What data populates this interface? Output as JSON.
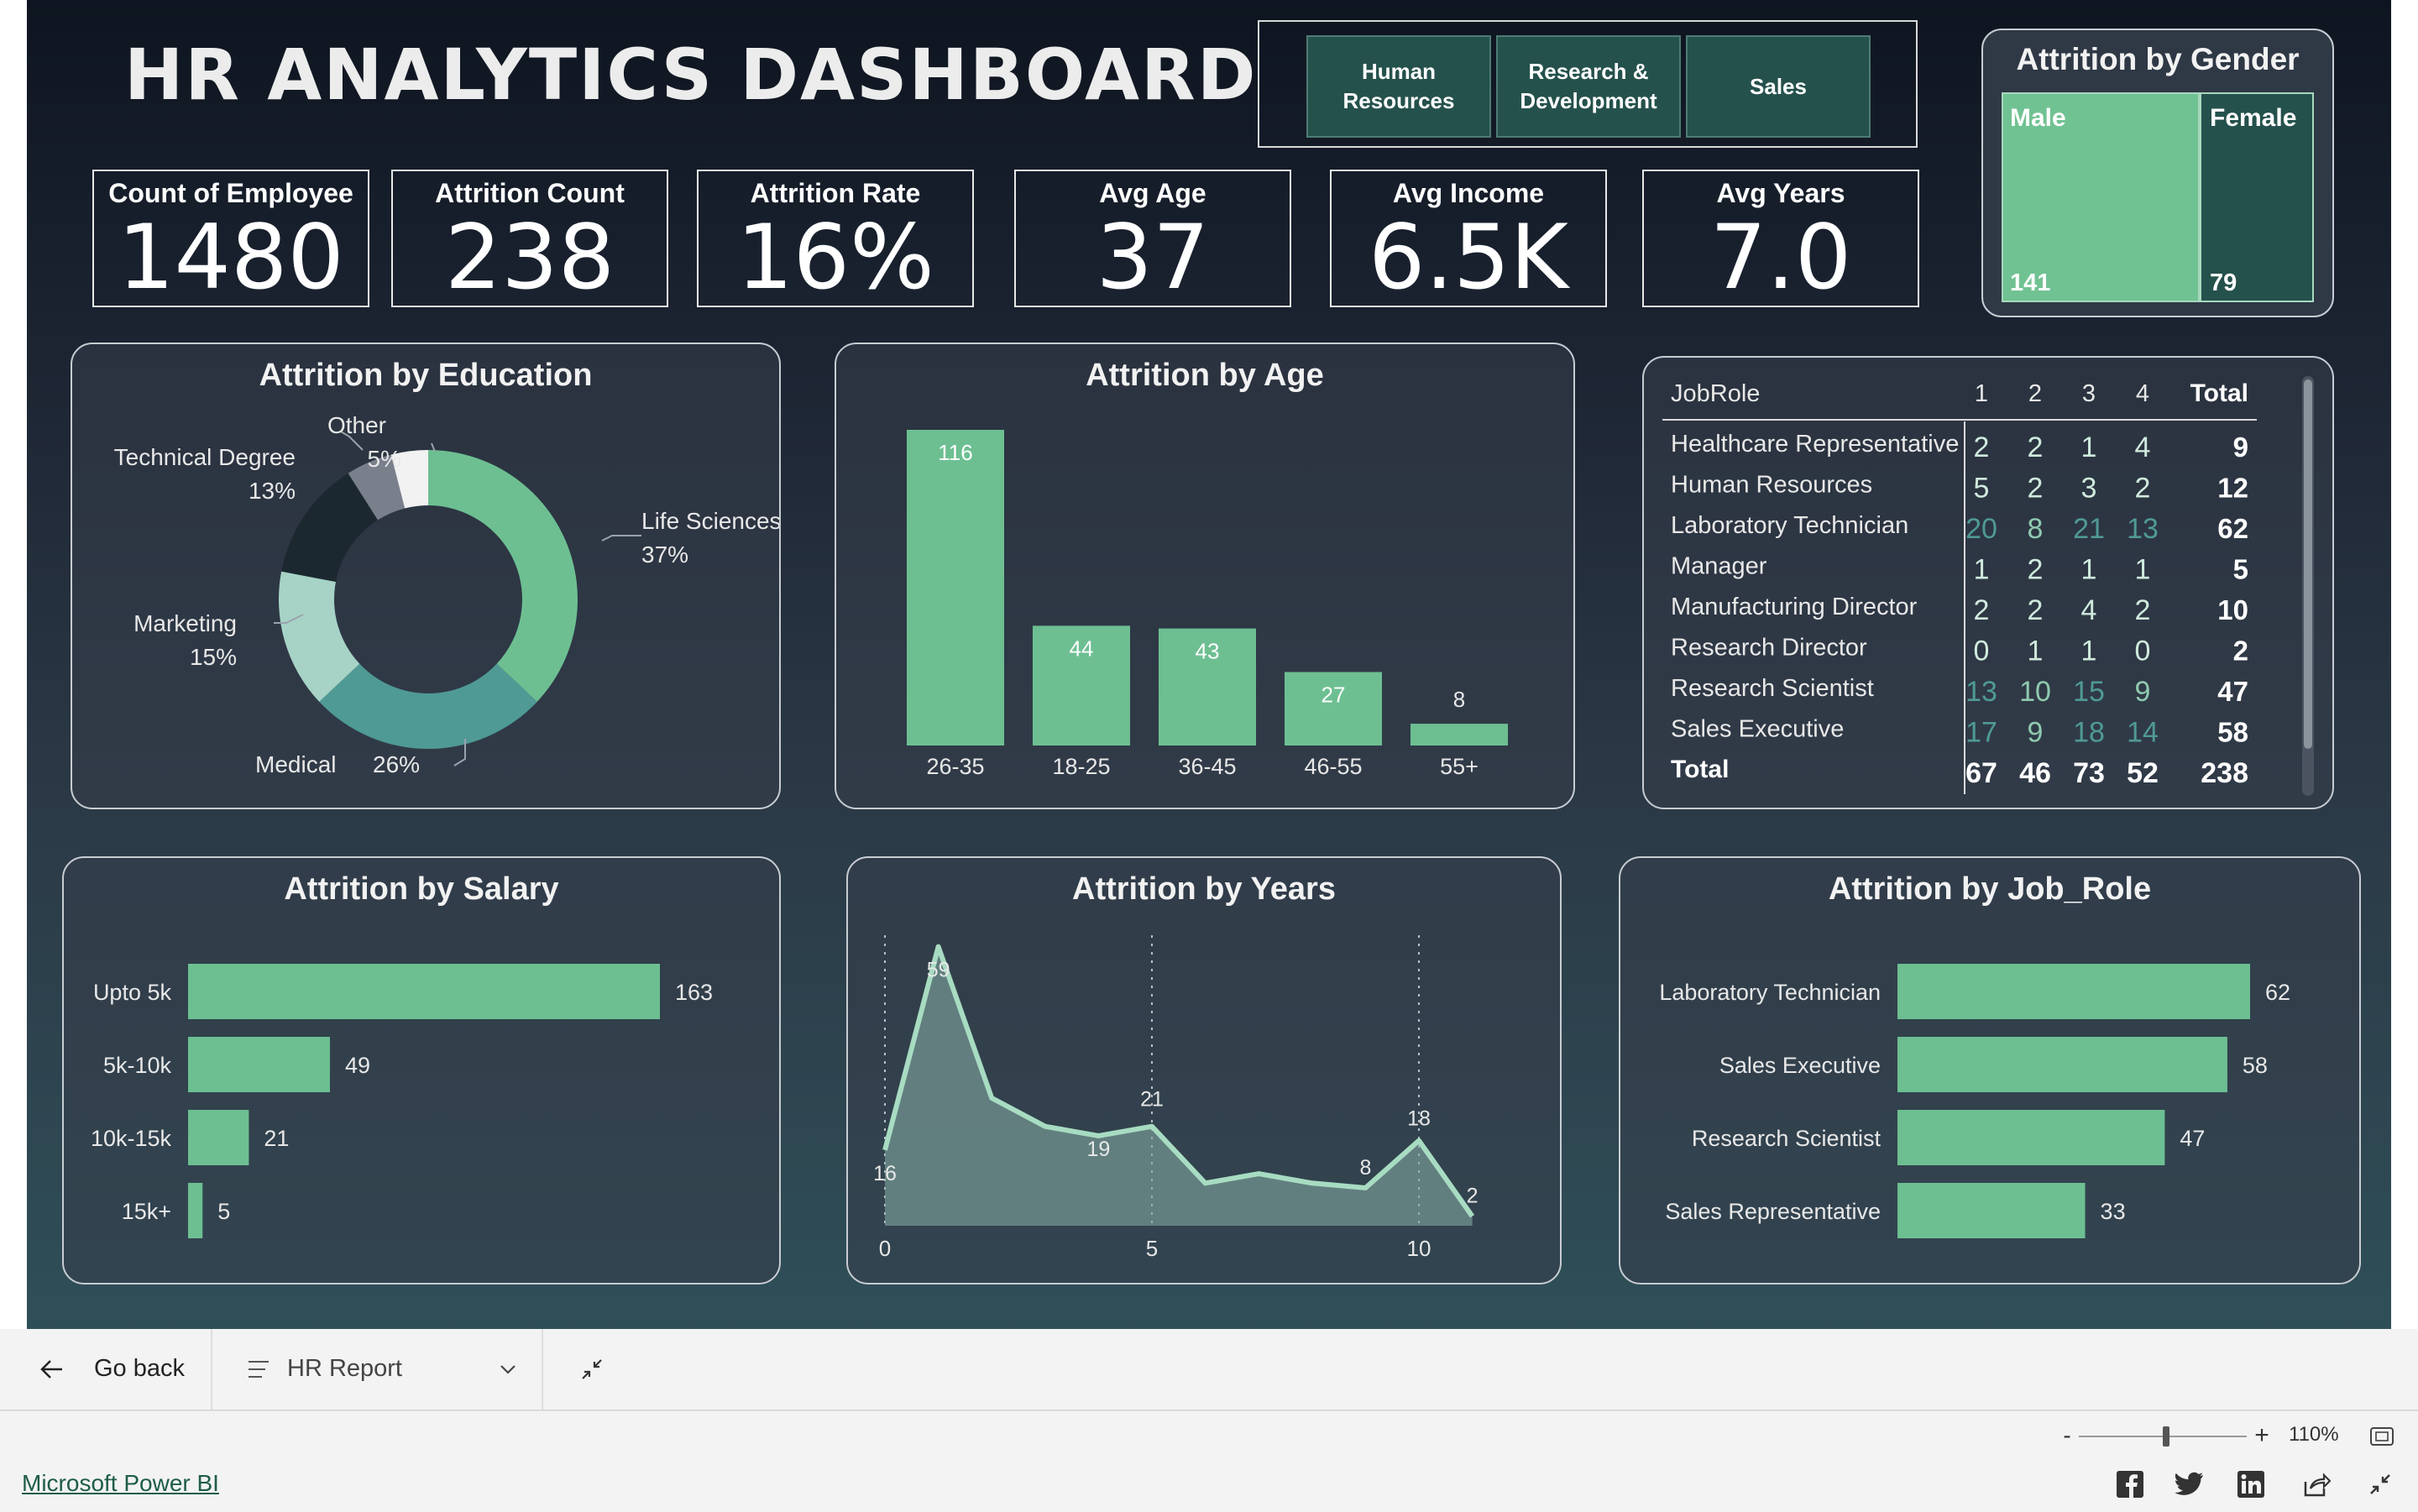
{
  "dashboard": {
    "title": "HR ANALYTICS DASHBOARD",
    "slicer_buttons": [
      "Human Resources",
      "Research & Development",
      "Sales"
    ],
    "kpis": [
      {
        "label": "Count of Employee",
        "value": "1480"
      },
      {
        "label": "Attrition Count",
        "value": "238"
      },
      {
        "label": "Attrition Rate",
        "value": "16%"
      },
      {
        "label": "Avg Age",
        "value": "37"
      },
      {
        "label": "Avg Income",
        "value": "6.5K"
      },
      {
        "label": "Avg Years",
        "value": "7.0"
      }
    ],
    "gender": {
      "title": "Attrition by Gender",
      "items": [
        {
          "label": "Male",
          "value": 141
        },
        {
          "label": "Female",
          "value": 79
        }
      ]
    },
    "education": {
      "title": "Attrition by Education",
      "labels": [
        {
          "name": "Life Sciences",
          "pct": "37%"
        },
        {
          "name": "Medical",
          "pct": "26%"
        },
        {
          "name": "Marketing",
          "pct": "15%"
        },
        {
          "name": "Technical Degree",
          "pct": "13%"
        },
        {
          "name": "Other",
          "pct": "5%"
        }
      ]
    },
    "age": {
      "title": "Attrition by Age"
    },
    "matrix": {
      "headers": [
        "JobRole",
        "1",
        "2",
        "3",
        "4",
        "Total"
      ],
      "rows": [
        {
          "role": "Healthcare Representative",
          "v": [
            2,
            2,
            1,
            4
          ],
          "total": 9
        },
        {
          "role": "Human Resources",
          "v": [
            5,
            2,
            3,
            2
          ],
          "total": 12
        },
        {
          "role": "Laboratory Technician",
          "v": [
            20,
            8,
            21,
            13
          ],
          "total": 62
        },
        {
          "role": "Manager",
          "v": [
            1,
            2,
            1,
            1
          ],
          "total": 5
        },
        {
          "role": "Manufacturing Director",
          "v": [
            2,
            2,
            4,
            2
          ],
          "total": 10
        },
        {
          "role": "Research Director",
          "v": [
            0,
            1,
            1,
            0
          ],
          "total": 2
        },
        {
          "role": "Research Scientist",
          "v": [
            13,
            10,
            15,
            9
          ],
          "total": 47
        },
        {
          "role": "Sales Executive",
          "v": [
            17,
            9,
            18,
            14
          ],
          "total": 58
        }
      ],
      "total_row": {
        "label": "Total",
        "v": [
          67,
          46,
          73,
          52
        ],
        "total": 238
      }
    },
    "salary": {
      "title": "Attrition by Salary"
    },
    "years": {
      "title": "Attrition by Years"
    },
    "jobrole": {
      "title": "Attrition by Job_Role"
    }
  },
  "chart_data": [
    {
      "type": "pie",
      "title": "Attrition by Education",
      "categories": [
        "Life Sciences",
        "Medical",
        "Marketing",
        "Technical Degree",
        "Other",
        ""
      ],
      "values": [
        37,
        26,
        15,
        13,
        5,
        4
      ],
      "colors": [
        "#6dbf92",
        "#4f9a95",
        "#a6d3c6",
        "#1c2830",
        "#7a7f8c",
        "#f2f2f2"
      ]
    },
    {
      "type": "bar",
      "title": "Attrition by Age",
      "categories": [
        "26-35",
        "18-25",
        "36-45",
        "46-55",
        "55+"
      ],
      "values": [
        116,
        44,
        43,
        27,
        8
      ]
    },
    {
      "type": "bar",
      "orientation": "horizontal",
      "title": "Attrition by Salary",
      "categories": [
        "Upto 5k",
        "5k-10k",
        "10k-15k",
        "15k+"
      ],
      "values": [
        163,
        49,
        21,
        5
      ]
    },
    {
      "type": "area",
      "title": "Attrition by Years",
      "x": [
        0,
        1,
        2,
        3,
        4,
        5,
        6,
        7,
        8,
        9,
        10,
        11
      ],
      "values": [
        16,
        59,
        27,
        21,
        19,
        21,
        9,
        11,
        9,
        8,
        18,
        2
      ],
      "labeled_points": [
        0,
        1,
        4,
        5,
        9,
        10,
        11
      ],
      "xticks": [
        0,
        5,
        10
      ],
      "ylim": [
        0,
        60
      ]
    },
    {
      "type": "bar",
      "orientation": "horizontal",
      "title": "Attrition by Job_Role",
      "categories": [
        "Laboratory Technician",
        "Sales Executive",
        "Research Scientist",
        "Sales Representative"
      ],
      "values": [
        62,
        58,
        47,
        33
      ]
    }
  ],
  "bottombar": {
    "go_back": "Go back",
    "report": "HR Report",
    "zoom": "110%"
  },
  "footer": {
    "brand": "Microsoft Power BI"
  },
  "colors": {
    "accent_green": "#6dbf92",
    "dark_teal": "#25514c",
    "teal": "#4f9a95"
  }
}
